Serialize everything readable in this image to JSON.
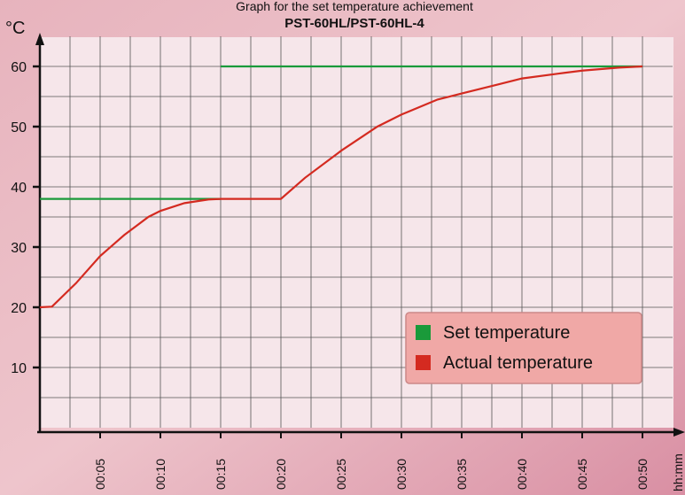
{
  "chart_data": {
    "type": "line",
    "title": "Graph for the set temperature achievement",
    "subtitle": "PST-60HL/PST-60HL-4",
    "y_label": "°C",
    "x_label": "hh:mm",
    "xlim": [
      0,
      52.5
    ],
    "ylim": [
      0,
      65
    ],
    "xticks": [
      {
        "value": 5,
        "label": "00:05"
      },
      {
        "value": 10,
        "label": "00:10"
      },
      {
        "value": 15,
        "label": "00:15"
      },
      {
        "value": 20,
        "label": "00:20"
      },
      {
        "value": 25,
        "label": "00:25"
      },
      {
        "value": 30,
        "label": "00:30"
      },
      {
        "value": 35,
        "label": "00:35"
      },
      {
        "value": 40,
        "label": "00:40"
      },
      {
        "value": 45,
        "label": "00:45"
      },
      {
        "value": 50,
        "label": "00:50"
      }
    ],
    "yticks": [
      10,
      20,
      30,
      40,
      50,
      60
    ],
    "grid": true,
    "legend": "lower right",
    "series": [
      {
        "name": "Set temperature",
        "color": "#1a9a3a",
        "x": [
          0,
          15,
          15,
          15,
          50
        ],
        "values": [
          38,
          38,
          null,
          60,
          60
        ]
      },
      {
        "name": "Actual temperature",
        "color": "#d42a20",
        "x": [
          0,
          1,
          3,
          5,
          7,
          9,
          10,
          12,
          14,
          15,
          20,
          22,
          25,
          28,
          30,
          33,
          35,
          38,
          40,
          43,
          45,
          48,
          50
        ],
        "values": [
          20,
          20.1,
          24,
          28.5,
          32,
          35,
          36,
          37.3,
          37.9,
          38,
          38,
          41.5,
          46,
          50,
          52,
          54.5,
          55.5,
          57,
          58,
          58.8,
          59.3,
          59.8,
          60
        ]
      }
    ]
  }
}
